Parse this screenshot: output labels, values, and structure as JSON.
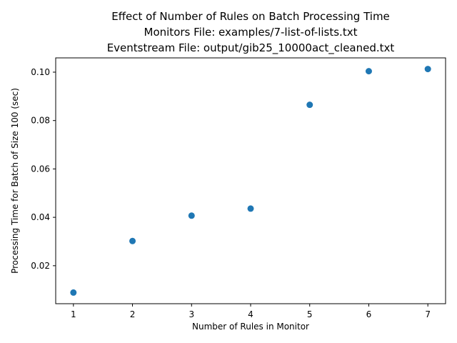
{
  "chart_data": {
    "type": "scatter",
    "title_lines": [
      "Effect of Number of Rules on Batch Processing Time",
      "Monitors File: examples/7-list-of-lists.txt",
      "Eventstream File: output/gib25_10000act_cleaned.txt"
    ],
    "xlabel": "Number of Rules in Monitor",
    "ylabel": "Processing Time for Batch of Size 100 (sec)",
    "x": [
      1,
      2,
      3,
      4,
      5,
      6,
      7
    ],
    "y": [
      0.0089,
      0.0302,
      0.0407,
      0.0436,
      0.0865,
      0.1004,
      0.1013
    ],
    "xlim": [
      0.7,
      7.3
    ],
    "ylim": [
      0.0043,
      0.1059
    ],
    "x_ticks": [
      1,
      2,
      3,
      4,
      5,
      6,
      7
    ],
    "y_ticks": [
      0.02,
      0.04,
      0.06,
      0.08,
      0.1
    ],
    "y_tick_labels": [
      "0.02",
      "0.04",
      "0.06",
      "0.08",
      "0.10"
    ],
    "x_tick_labels": [
      "1",
      "2",
      "3",
      "4",
      "5",
      "6",
      "7"
    ],
    "grid": false,
    "legend": "none",
    "marker_color": "#1f77b4"
  }
}
